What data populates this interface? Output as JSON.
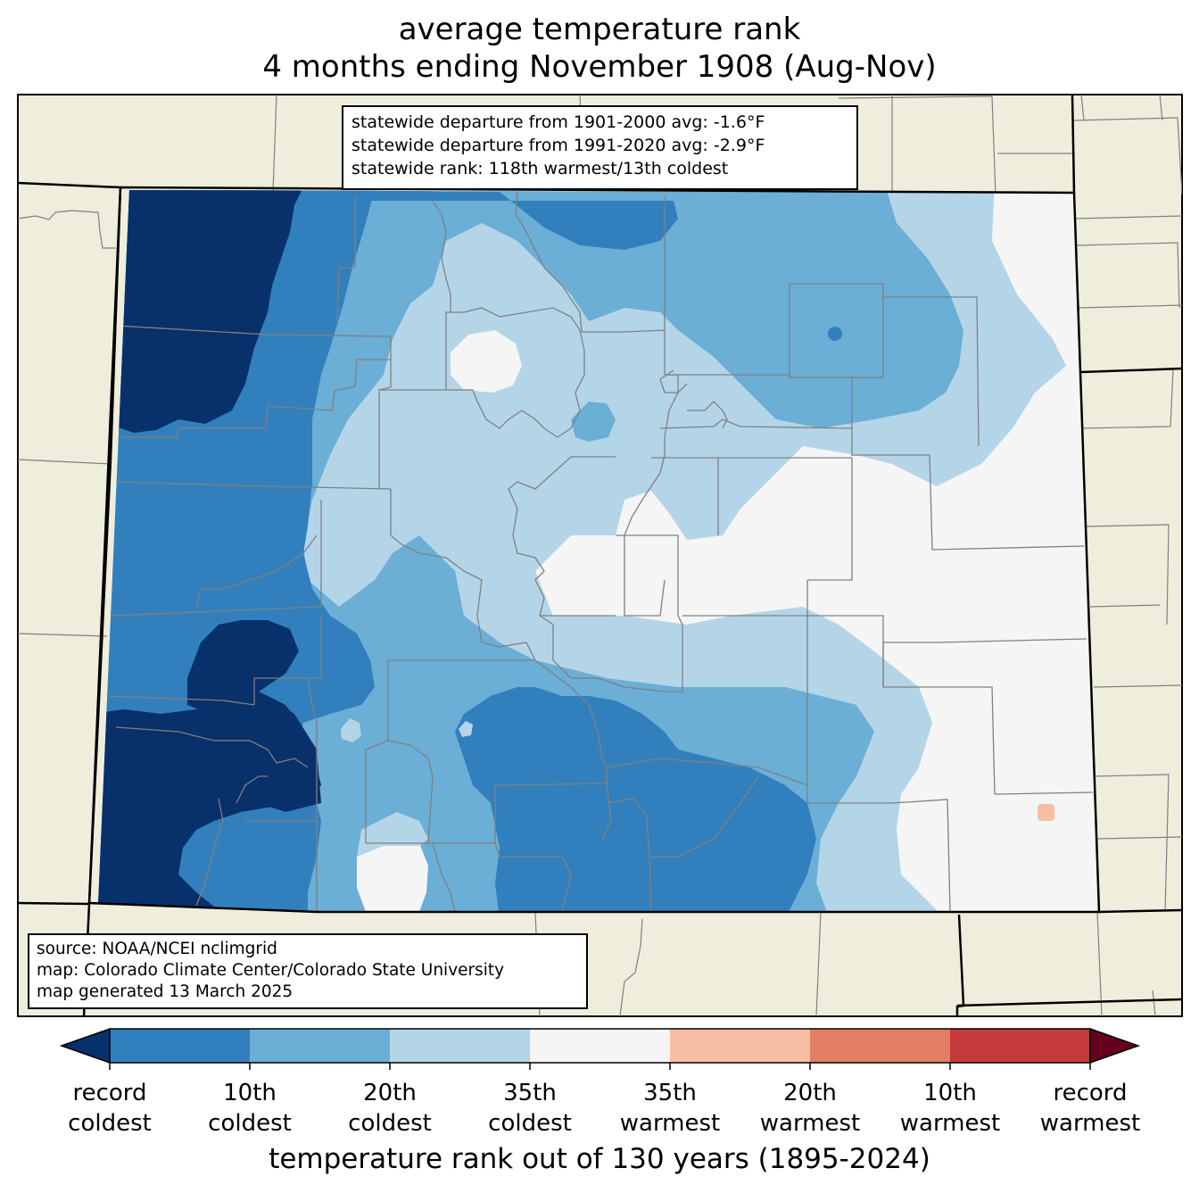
{
  "title": {
    "line1": "average temperature rank",
    "line2": "4 months ending November 1908 (Aug-Nov)"
  },
  "stats": {
    "line1": "statewide departure from 1901-2000 avg: -1.6°F",
    "line2": "statewide departure from 1991-2020 avg: -2.9°F",
    "line3": "statewide rank: 118th warmest/13th coldest"
  },
  "source": {
    "line1": "source: NOAA/NCEI nclimgrid",
    "line2": "map: Colorado Climate Center/Colorado State University",
    "line3": "map generated 13 March 2025"
  },
  "colorbar": {
    "extend_low_color": "#08306b",
    "extend_high_color": "#67001f",
    "colors": [
      "#3180bd",
      "#6baed6",
      "#b4d5e8",
      "#f5f5f5",
      "#f8bea3",
      "#e27f64",
      "#c43a3c"
    ],
    "labels": [
      {
        "l1": "record",
        "l2": "coldest"
      },
      {
        "l1": "10th",
        "l2": "coldest"
      },
      {
        "l1": "20th",
        "l2": "coldest"
      },
      {
        "l1": "35th",
        "l2": "coldest"
      },
      {
        "l1": "35th",
        "l2": "warmest"
      },
      {
        "l1": "20th",
        "l2": "warmest"
      },
      {
        "l1": "10th",
        "l2": "warmest"
      },
      {
        "l1": "record",
        "l2": "warmest"
      }
    ],
    "axis_title": "temperature rank out of 130 years (1895-2024)"
  },
  "colors": {
    "land_background": "#efeedc",
    "county_lines": "#808080",
    "state_lines": "#000000"
  }
}
